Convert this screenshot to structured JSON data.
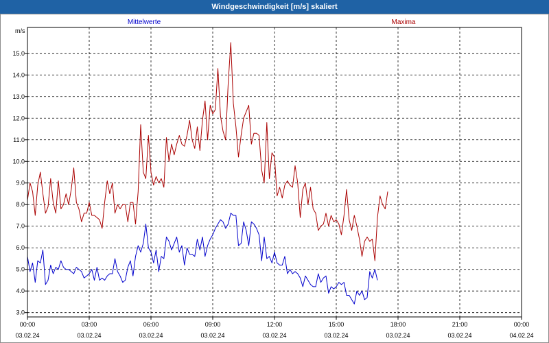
{
  "title": "Windgeschwindigkeit [m/s] skaliert",
  "colors": {
    "titlebar": "#1f62a5",
    "mittel": "#0000cc",
    "maxima": "#aa0000",
    "grid": "#000000"
  },
  "chart_data": {
    "type": "line",
    "title": "Windgeschwindigkeit [m/s] skaliert",
    "unit_label": "m/s",
    "ylim": [
      2.8,
      16.2
    ],
    "yticks": [
      "3.0",
      "4.0",
      "5.0",
      "6.0",
      "7.0",
      "8.0",
      "9.0",
      "10.0",
      "11.0",
      "12.0",
      "13.0",
      "14.0",
      "15.0"
    ],
    "xlim": [
      0,
      24
    ],
    "xticks": [
      {
        "time": "00:00",
        "date": "03.02.24"
      },
      {
        "time": "03:00",
        "date": "03.02.24"
      },
      {
        "time": "06:00",
        "date": "03.02.24"
      },
      {
        "time": "09:00",
        "date": "03.02.24"
      },
      {
        "time": "12:00",
        "date": "03.02.24"
      },
      {
        "time": "15:00",
        "date": "03.02.24"
      },
      {
        "time": "18:00",
        "date": "03.02.24"
      },
      {
        "time": "21:00",
        "date": "03.02.24"
      },
      {
        "time": "00:00",
        "date": "04.02.24"
      }
    ],
    "grid": true,
    "legend_placement": "top",
    "series": [
      {
        "name": "Mittelwerte",
        "color": "#0000cc",
        "step_hours": 0.125,
        "values": [
          5.6,
          4.9,
          5.3,
          4.4,
          5.4,
          5.3,
          5.9,
          4.3,
          4.5,
          5.2,
          4.8,
          5.1,
          5.0,
          5.4,
          5.1,
          5.0,
          5.0,
          4.9,
          4.8,
          5.1,
          5.0,
          4.9,
          4.6,
          4.7,
          4.8,
          5.0,
          4.5,
          5.1,
          4.5,
          4.6,
          4.5,
          4.7,
          4.8,
          4.8,
          5.5,
          4.9,
          4.7,
          4.4,
          4.5,
          5.1,
          5.4,
          4.7,
          5.6,
          6.1,
          5.8,
          6.2,
          7.1,
          6.0,
          5.8,
          5.3,
          5.9,
          4.9,
          5.6,
          5.5,
          6.5,
          6.3,
          5.9,
          6.2,
          6.5,
          5.8,
          6.1,
          5.2,
          6.0,
          5.7,
          5.7,
          5.6,
          6.4,
          5.9,
          6.5,
          5.6,
          6.1,
          6.4,
          6.6,
          6.9,
          7.1,
          7.3,
          7.2,
          6.9,
          7.1,
          7.6,
          7.5,
          7.5,
          6.1,
          6.2,
          7.2,
          6.8,
          6.1,
          7.2,
          7.1,
          6.9,
          6.6,
          5.4,
          6.5,
          5.5,
          5.6,
          5.3,
          5.8,
          5.3,
          5.2,
          5.2,
          5.6,
          4.8,
          5.0,
          4.8,
          4.9,
          4.8,
          4.6,
          4.2,
          4.7,
          4.5,
          4.3,
          4.2,
          4.2,
          4.8,
          4.4,
          4.6,
          4.7,
          3.9,
          4.2,
          4.1,
          4.2,
          4.4,
          4.3,
          4.4,
          3.8,
          3.8,
          3.6,
          3.4,
          4.0,
          3.8,
          4.0,
          3.6,
          3.7,
          4.9,
          4.6,
          5.0,
          4.5
        ]
      },
      {
        "name": "Maxima",
        "color": "#aa0000",
        "step_hours": 0.125,
        "values": [
          8.2,
          9.0,
          8.6,
          7.5,
          8.9,
          9.5,
          8.5,
          7.6,
          7.9,
          9.2,
          8.1,
          7.6,
          9.1,
          7.8,
          8.0,
          8.5,
          8.0,
          8.7,
          9.7,
          8.1,
          7.8,
          7.2,
          7.6,
          7.6,
          8.1,
          7.5,
          7.5,
          7.4,
          7.3,
          6.9,
          8.1,
          9.1,
          8.5,
          9.0,
          7.6,
          8.0,
          7.8,
          8.0,
          8.0,
          7.2,
          8.1,
          8.1,
          7.1,
          8.6,
          11.7,
          9.5,
          9.2,
          11.2,
          9.5,
          8.9,
          9.3,
          9.0,
          9.2,
          8.8,
          11.1,
          10.0,
          10.8,
          10.3,
          10.8,
          11.2,
          10.8,
          10.7,
          11.2,
          11.9,
          11.0,
          10.6,
          11.6,
          10.5,
          11.9,
          12.8,
          11.0,
          12.6,
          12.2,
          12.4,
          14.3,
          12.1,
          11.4,
          11.0,
          13.6,
          15.5,
          12.7,
          11.6,
          10.2,
          11.2,
          12.0,
          12.3,
          12.6,
          10.8,
          11.3,
          11.3,
          11.2,
          9.6,
          9.0,
          11.8,
          9.2,
          10.4,
          10.2,
          8.4,
          8.8,
          8.3,
          8.9,
          9.1,
          8.9,
          8.8,
          9.8,
          9.0,
          7.4,
          8.7,
          9.0,
          8.0,
          8.8,
          7.8,
          7.6,
          6.8,
          7.0,
          7.1,
          7.6,
          7.0,
          7.5,
          7.2,
          7.3,
          7.1,
          6.6,
          7.5,
          8.7,
          7.3,
          6.8,
          7.5,
          7.0,
          6.4,
          5.6,
          6.3,
          6.5,
          6.3,
          6.4,
          5.4,
          7.4,
          8.4,
          8.0,
          7.8,
          8.6
        ]
      }
    ]
  }
}
